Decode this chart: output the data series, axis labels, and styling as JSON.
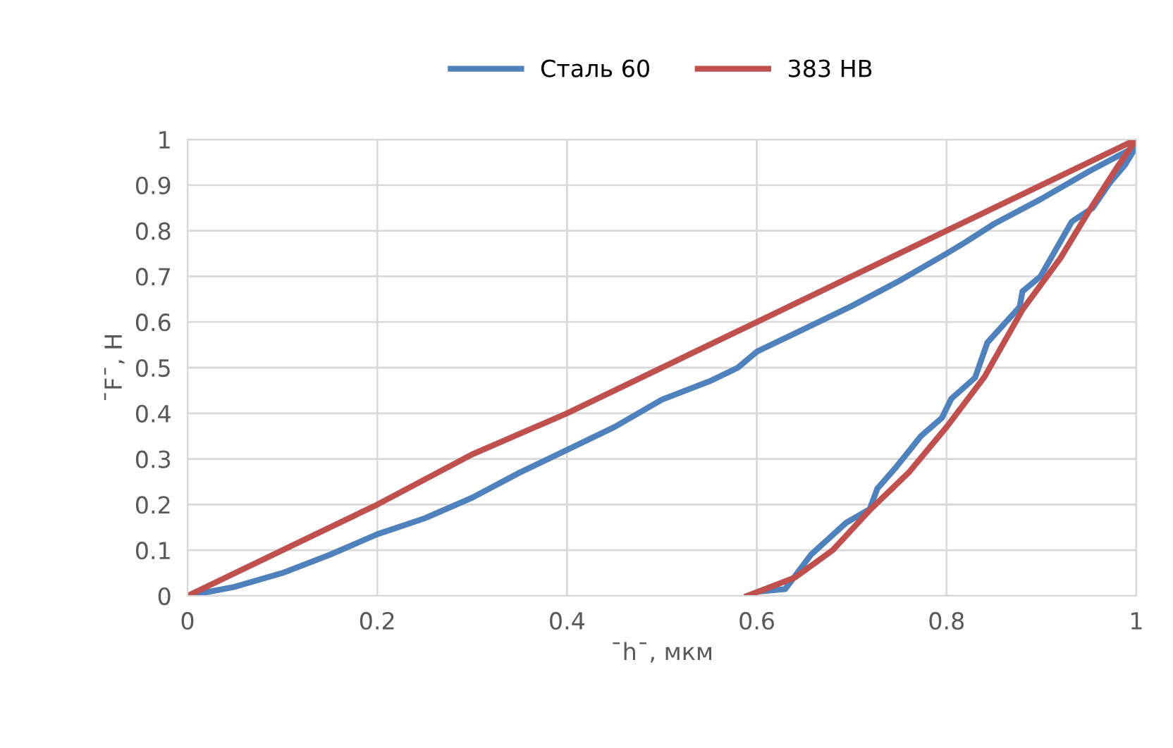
{
  "chart_data": {
    "type": "line",
    "xlabel": "¯h¯, мкм",
    "ylabel": "¯F¯, Н",
    "xlim": [
      0,
      1
    ],
    "xticks": [
      0,
      0.2,
      0.4,
      0.6,
      0.8,
      1
    ],
    "ylim": [
      0,
      1
    ],
    "yticks": [
      0,
      0.1,
      0.2,
      0.3,
      0.4,
      0.5,
      0.6,
      0.7,
      0.8,
      0.9,
      1
    ],
    "grid": true,
    "legend": "top",
    "marker": "none",
    "line_style": "solid",
    "series": [
      {
        "name": "Сталь 60",
        "color": "#4f81bd",
        "x": [
          0,
          0.05,
          0.1,
          0.15,
          0.2,
          0.25,
          0.3,
          0.35,
          0.4,
          0.45,
          0.5,
          0.55,
          0.58,
          0.6,
          0.65,
          0.7,
          0.75,
          0.8,
          0.82,
          0.85,
          0.9,
          0.95,
          1.0,
          0.988,
          0.972,
          0.954,
          0.932,
          0.899,
          0.88,
          0.877,
          0.843,
          0.83,
          0.805,
          0.795,
          0.773,
          0.746,
          0.727,
          0.719,
          0.694,
          0.657,
          0.63,
          0.605
        ],
        "values": [
          0,
          0.02,
          0.05,
          0.09,
          0.135,
          0.17,
          0.215,
          0.27,
          0.32,
          0.37,
          0.43,
          0.47,
          0.5,
          0.535,
          0.585,
          0.635,
          0.69,
          0.75,
          0.775,
          0.815,
          0.87,
          0.93,
          0.985,
          0.944,
          0.905,
          0.85,
          0.82,
          0.7,
          0.667,
          0.633,
          0.555,
          0.478,
          0.432,
          0.39,
          0.35,
          0.28,
          0.235,
          0.19,
          0.16,
          0.09,
          0.015,
          0.01
        ]
      },
      {
        "name": "383 НВ",
        "color": "#c0504d",
        "x": [
          0,
          0.2,
          0.3,
          0.4,
          0.5,
          0.6,
          0.8,
          1,
          0.98,
          0.95,
          0.92,
          0.88,
          0.84,
          0.8,
          0.76,
          0.72,
          0.68,
          0.64,
          0.59
        ],
        "values": [
          0,
          0.2,
          0.31,
          0.4,
          0.5,
          0.6,
          0.8,
          1,
          0.94,
          0.843,
          0.74,
          0.627,
          0.48,
          0.37,
          0.27,
          0.19,
          0.1,
          0.04,
          0
        ]
      }
    ]
  }
}
